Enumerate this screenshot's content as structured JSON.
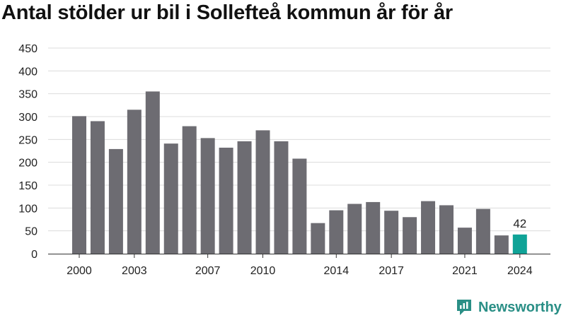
{
  "title": "Antal stölder ur bil i Sollefteå kommun år för år",
  "brand": {
    "name": "Newsworthy"
  },
  "colors": {
    "bar": "#6d6c72",
    "highlight": "#0fa397",
    "grid": "#dcdcdc",
    "axis": "#333333",
    "text": "#222222"
  },
  "chart_data": {
    "type": "bar",
    "title": "Antal stölder ur bil i Sollefteå kommun år för år",
    "xlabel": "",
    "ylabel": "",
    "ylim": [
      0,
      450
    ],
    "yticks": [
      0,
      50,
      100,
      150,
      200,
      250,
      300,
      350,
      400,
      450
    ],
    "categories": [
      "2000",
      "2001",
      "2002",
      "2003",
      "2004",
      "2005",
      "2006",
      "2007",
      "2008",
      "2009",
      "2010",
      "2011",
      "2012",
      "2013",
      "2014",
      "2015",
      "2016",
      "2017",
      "2018",
      "2019",
      "2020",
      "2021",
      "2022",
      "2023",
      "2024"
    ],
    "values": [
      301,
      290,
      229,
      315,
      355,
      241,
      279,
      253,
      232,
      246,
      270,
      246,
      208,
      67,
      95,
      109,
      113,
      94,
      80,
      115,
      106,
      57,
      98,
      40,
      42
    ],
    "xtick_labels": [
      "2000",
      "2003",
      "2007",
      "2010",
      "2014",
      "2017",
      "2021",
      "2024"
    ],
    "highlight_index": 24,
    "data_labels": [
      {
        "index": 24,
        "text": "42"
      }
    ],
    "grid": true,
    "legend": "none"
  }
}
